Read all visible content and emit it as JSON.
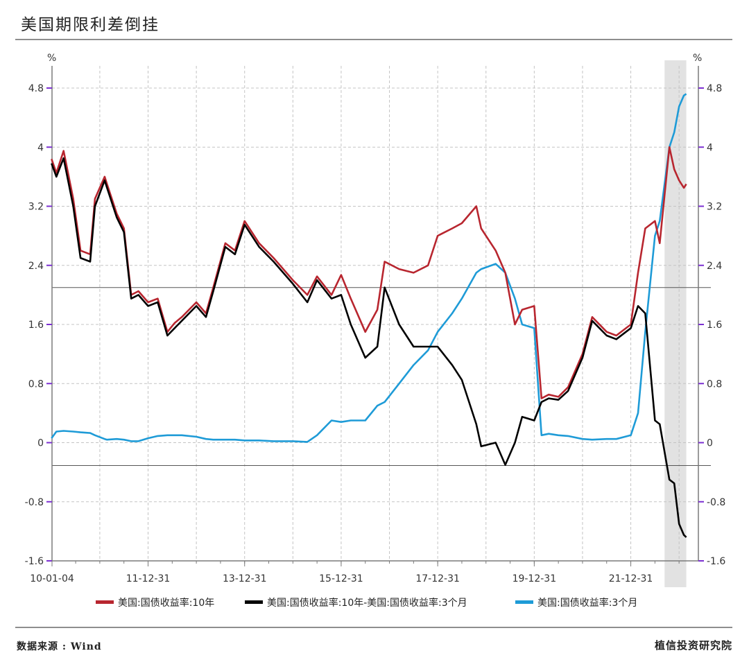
{
  "page": {
    "title": "美国期限利差倒挂",
    "source": "数据来源 : Wind",
    "org": "植信投资研究院"
  },
  "chart_data": {
    "type": "line",
    "title": "美国期限利差倒挂",
    "unit_left": "%",
    "unit_right": "%",
    "ylim": [
      -1.6,
      4.8
    ],
    "y_ticks": [
      -1.6,
      -0.8,
      0,
      0.8,
      1.6,
      2.4,
      3.2,
      4,
      4.8
    ],
    "y_tick_labels": [
      "-1.6",
      "-0.8",
      "0",
      "0.8",
      "1.6",
      "2.4",
      "3.2",
      "4",
      "4.8"
    ],
    "xlim": [
      2010.01,
      2023.4
    ],
    "x_ticks": [
      2010.01,
      2012.0,
      2014.0,
      2016.0,
      2018.0,
      2020.0,
      2022.0
    ],
    "x_tick_labels": [
      "10-01-04",
      "11-12-31",
      "13-12-31",
      "15-12-31",
      "17-12-31",
      "19-12-31",
      "21-12-31"
    ],
    "reference_lines": [
      2.1,
      -0.31
    ],
    "shaded_x_range": [
      2022.7,
      2023.15
    ],
    "legend": [
      {
        "name": "美国:国债收益率:10年",
        "color": "#b8262f"
      },
      {
        "name": "美国:国债收益率:10年-美国:国债收益率:3个月",
        "color": "#000000"
      },
      {
        "name": "美国:国债收益率:3个月",
        "color": "#1e9bd7"
      }
    ],
    "series": [
      {
        "name": "美国:国债收益率:10年",
        "color": "#b8262f",
        "x": [
          2010.0,
          2010.1,
          2010.25,
          2010.45,
          2010.6,
          2010.8,
          2010.9,
          2011.1,
          2011.15,
          2011.35,
          2011.5,
          2011.65,
          2011.8,
          2012.0,
          2012.2,
          2012.4,
          2012.55,
          2012.7,
          2013.0,
          2013.2,
          2013.35,
          2013.6,
          2013.8,
          2014.0,
          2014.3,
          2014.6,
          2015.0,
          2015.3,
          2015.5,
          2015.8,
          2016.0,
          2016.2,
          2016.5,
          2016.75,
          2016.9,
          2017.2,
          2017.5,
          2017.8,
          2018.0,
          2018.3,
          2018.5,
          2018.8,
          2018.9,
          2019.2,
          2019.4,
          2019.6,
          2019.75,
          2020.0,
          2020.15,
          2020.3,
          2020.5,
          2020.7,
          2021.0,
          2021.2,
          2021.5,
          2021.7,
          2022.0,
          2022.15,
          2022.3,
          2022.5,
          2022.6,
          2022.8,
          2022.9,
          2023.0,
          2023.1,
          2023.15
        ],
        "values": [
          3.84,
          3.65,
          3.95,
          3.3,
          2.6,
          2.55,
          3.3,
          3.6,
          3.5,
          3.1,
          2.9,
          2.0,
          2.05,
          1.9,
          1.95,
          1.5,
          1.62,
          1.7,
          1.9,
          1.75,
          2.1,
          2.7,
          2.6,
          3.0,
          2.7,
          2.5,
          2.2,
          2.0,
          2.25,
          2.0,
          2.27,
          1.95,
          1.5,
          1.8,
          2.45,
          2.35,
          2.3,
          2.4,
          2.8,
          2.9,
          2.97,
          3.2,
          2.9,
          2.6,
          2.3,
          1.6,
          1.8,
          1.85,
          0.6,
          0.65,
          0.62,
          0.75,
          1.2,
          1.7,
          1.5,
          1.45,
          1.6,
          2.3,
          2.9,
          3.0,
          2.7,
          4.0,
          3.7,
          3.55,
          3.45,
          3.5
        ]
      },
      {
        "name": "美国:国债收益率:10年-美国:国债收益率:3个月",
        "color": "#000000",
        "x": [
          2010.0,
          2010.1,
          2010.25,
          2010.45,
          2010.6,
          2010.8,
          2010.9,
          2011.1,
          2011.15,
          2011.35,
          2011.5,
          2011.65,
          2011.8,
          2012.0,
          2012.2,
          2012.4,
          2012.55,
          2012.7,
          2013.0,
          2013.2,
          2013.35,
          2013.6,
          2013.8,
          2014.0,
          2014.3,
          2014.6,
          2015.0,
          2015.3,
          2015.5,
          2015.8,
          2016.0,
          2016.2,
          2016.5,
          2016.75,
          2016.9,
          2017.2,
          2017.5,
          2017.8,
          2018.0,
          2018.3,
          2018.5,
          2018.8,
          2018.9,
          2019.2,
          2019.4,
          2019.6,
          2019.75,
          2020.0,
          2020.15,
          2020.3,
          2020.5,
          2020.7,
          2021.0,
          2021.2,
          2021.5,
          2021.7,
          2022.0,
          2022.15,
          2022.3,
          2022.5,
          2022.6,
          2022.8,
          2022.9,
          2023.0,
          2023.1,
          2023.15
        ],
        "values": [
          3.78,
          3.6,
          3.85,
          3.2,
          2.5,
          2.45,
          3.2,
          3.55,
          3.45,
          3.05,
          2.85,
          1.95,
          2.0,
          1.85,
          1.9,
          1.45,
          1.55,
          1.65,
          1.85,
          1.7,
          2.05,
          2.65,
          2.55,
          2.95,
          2.65,
          2.45,
          2.15,
          1.9,
          2.2,
          1.95,
          2.0,
          1.6,
          1.15,
          1.3,
          2.1,
          1.6,
          1.3,
          1.3,
          1.3,
          1.05,
          0.85,
          0.25,
          -0.05,
          0.0,
          -0.3,
          0.0,
          0.35,
          0.3,
          0.55,
          0.6,
          0.58,
          0.7,
          1.15,
          1.65,
          1.45,
          1.4,
          1.55,
          1.85,
          1.75,
          0.3,
          0.25,
          -0.5,
          -0.55,
          -1.1,
          -1.25,
          -1.28
        ]
      },
      {
        "name": "美国:国债收益率:3个月",
        "color": "#1e9bd7",
        "x": [
          2010.0,
          2010.1,
          2010.25,
          2010.45,
          2010.6,
          2010.8,
          2010.9,
          2011.1,
          2011.15,
          2011.35,
          2011.5,
          2011.65,
          2011.8,
          2012.0,
          2012.2,
          2012.4,
          2012.55,
          2012.7,
          2013.0,
          2013.2,
          2013.35,
          2013.6,
          2013.8,
          2014.0,
          2014.3,
          2014.6,
          2015.0,
          2015.3,
          2015.5,
          2015.8,
          2016.0,
          2016.2,
          2016.5,
          2016.75,
          2016.9,
          2017.2,
          2017.5,
          2017.8,
          2018.0,
          2018.3,
          2018.5,
          2018.8,
          2018.9,
          2019.2,
          2019.4,
          2019.6,
          2019.75,
          2020.0,
          2020.15,
          2020.3,
          2020.5,
          2020.7,
          2021.0,
          2021.2,
          2021.5,
          2021.7,
          2022.0,
          2022.15,
          2022.3,
          2022.5,
          2022.6,
          2022.8,
          2022.9,
          2023.0,
          2023.1,
          2023.15
        ],
        "values": [
          0.06,
          0.15,
          0.16,
          0.15,
          0.14,
          0.13,
          0.1,
          0.05,
          0.04,
          0.05,
          0.04,
          0.02,
          0.02,
          0.06,
          0.09,
          0.1,
          0.1,
          0.1,
          0.08,
          0.05,
          0.04,
          0.04,
          0.04,
          0.03,
          0.03,
          0.02,
          0.02,
          0.01,
          0.1,
          0.3,
          0.28,
          0.3,
          0.3,
          0.5,
          0.55,
          0.8,
          1.05,
          1.25,
          1.5,
          1.75,
          1.95,
          2.3,
          2.35,
          2.42,
          2.3,
          1.95,
          1.6,
          1.55,
          0.1,
          0.12,
          0.1,
          0.09,
          0.05,
          0.04,
          0.05,
          0.05,
          0.1,
          0.4,
          1.5,
          2.8,
          3.0,
          4.0,
          4.2,
          4.55,
          4.7,
          4.72
        ]
      }
    ]
  }
}
